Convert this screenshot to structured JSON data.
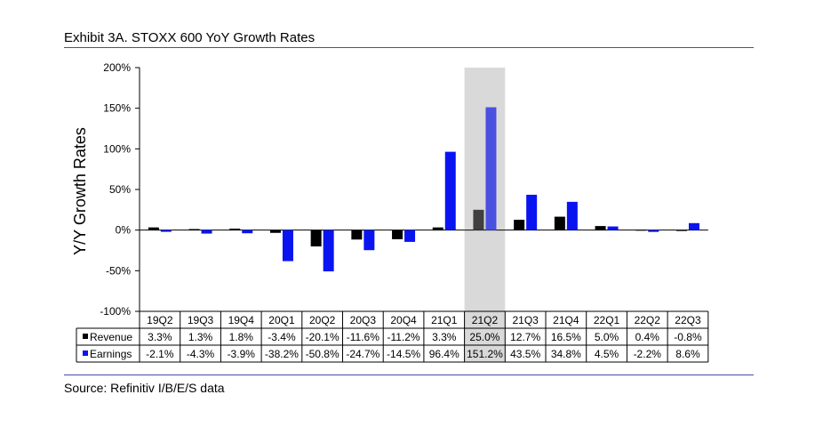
{
  "header": {
    "title": "Exhibit 3A.  STOXX 600 YoY Growth Rates"
  },
  "footer": {
    "source": "Source: Refinitiv I/B/E/S data"
  },
  "chart_data": {
    "type": "bar",
    "title": "Exhibit 3A.  STOXX 600 YoY Growth Rates",
    "ylabel": "Y/Y Growth Rates",
    "xlabel": "",
    "ylim": [
      -100,
      200
    ],
    "yticks": [
      200,
      150,
      100,
      50,
      0,
      -50,
      -100
    ],
    "ytick_labels": [
      "200%",
      "150%",
      "100%",
      "50%",
      "0%",
      "-50%",
      "-100%"
    ],
    "grid": false,
    "categories": [
      "19Q2",
      "19Q3",
      "19Q4",
      "20Q1",
      "20Q2",
      "20Q3",
      "20Q4",
      "21Q1",
      "21Q2",
      "21Q3",
      "21Q4",
      "22Q1",
      "22Q2",
      "22Q3"
    ],
    "highlight_category": "21Q2",
    "series": [
      {
        "name": "Revenue",
        "color": "#000000",
        "highlight_color": "#404040",
        "values": [
          3.3,
          1.3,
          1.8,
          -3.4,
          -20.1,
          -11.6,
          -11.2,
          3.3,
          25.0,
          12.7,
          16.5,
          5.0,
          0.4,
          -0.8
        ],
        "labels": [
          "3.3%",
          "1.3%",
          "1.8%",
          "-3.4%",
          "-20.1%",
          "-11.6%",
          "-11.2%",
          "3.3%",
          "25.0%",
          "12.7%",
          "16.5%",
          "5.0%",
          "0.4%",
          "-0.8%"
        ]
      },
      {
        "name": "Earnings",
        "color": "#0a14f0",
        "highlight_color": "#4a50e0",
        "values": [
          -2.1,
          -4.3,
          -3.9,
          -38.2,
          -50.8,
          -24.7,
          -14.5,
          96.4,
          151.2,
          43.5,
          34.8,
          4.5,
          -2.2,
          8.6
        ],
        "labels": [
          "-2.1%",
          "-4.3%",
          "-3.9%",
          "-38.2%",
          "-50.8%",
          "-24.7%",
          "-14.5%",
          "96.4%",
          "151.2%",
          "43.5%",
          "34.8%",
          "4.5%",
          "-2.2%",
          "8.6%"
        ]
      }
    ]
  }
}
